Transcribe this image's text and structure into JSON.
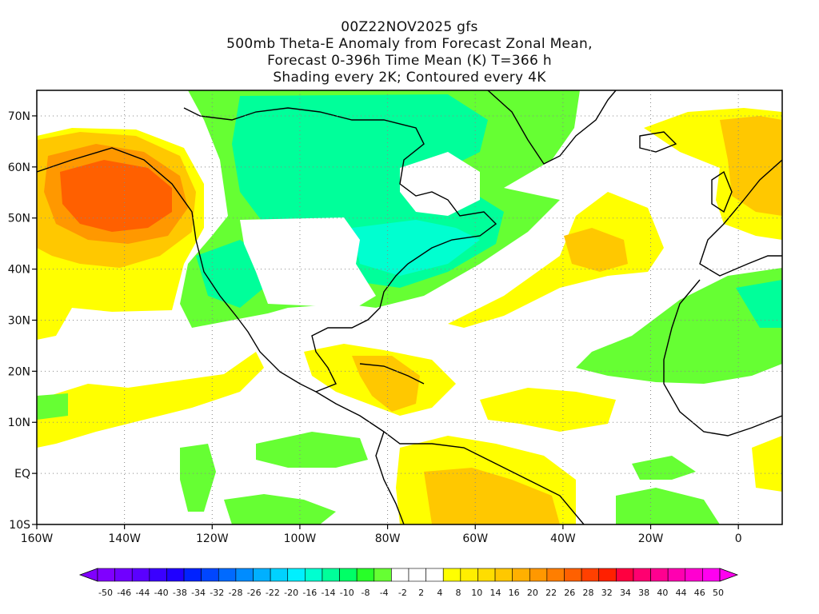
{
  "title": {
    "line1": "00Z22NOV2025 gfs",
    "line2": "500mb Theta-E Anomaly from Forecast Zonal Mean,",
    "line3": "Forecast 0-396h Time Mean (K) T=366 h",
    "line4": "Shading every 2K; Contoured every 4K"
  },
  "map": {
    "lon_range": [
      -160,
      10
    ],
    "lat_range": [
      -10,
      75
    ],
    "lon_ticks": [
      "160W",
      "140W",
      "120W",
      "100W",
      "80W",
      "60W",
      "40W",
      "20W",
      "0"
    ],
    "lat_ticks": [
      "10S",
      "EQ",
      "10N",
      "20N",
      "30N",
      "40N",
      "50N",
      "60N",
      "70N"
    ],
    "gridlines": "dotted"
  },
  "colorbar": {
    "labels": [
      "-50",
      "-46",
      "-44",
      "-40",
      "-38",
      "-34",
      "-32",
      "-28",
      "-26",
      "-22",
      "-20",
      "-16",
      "-14",
      "-10",
      "-8",
      "-4",
      "-2",
      "2",
      "4",
      "8",
      "10",
      "14",
      "16",
      "20",
      "22",
      "26",
      "28",
      "32",
      "34",
      "38",
      "40",
      "44",
      "46",
      "50"
    ],
    "colors": [
      "#8000ff",
      "#7000ff",
      "#5a00ff",
      "#3a00ff",
      "#2000ff",
      "#0022ff",
      "#0046ff",
      "#006aff",
      "#008cff",
      "#00b0ff",
      "#00d2ff",
      "#00f0ff",
      "#00ffd0",
      "#00ff9a",
      "#00ff66",
      "#28ff28",
      "#66ff33",
      "#ffffff",
      "#ffffff",
      "#ffffff",
      "#ffff00",
      "#ffee00",
      "#ffdd00",
      "#ffc800",
      "#ffb000",
      "#ff9800",
      "#ff7e00",
      "#ff6000",
      "#ff4000",
      "#ff2000",
      "#ff0040",
      "#ff0070",
      "#ff0090",
      "#ff00b0",
      "#ff00d0",
      "#ff00f0"
    ]
  }
}
